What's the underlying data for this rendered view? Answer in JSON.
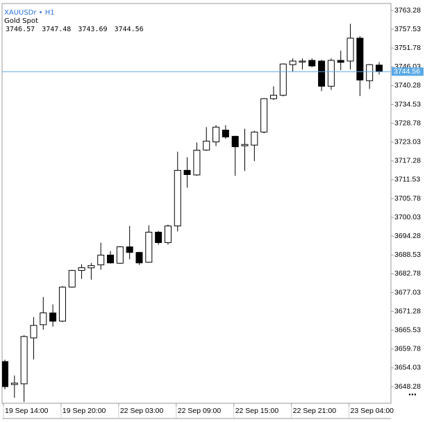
{
  "chart_data": {
    "type": "candlestick",
    "title": "XAUUSDr • H1",
    "subtitle": "Gold Spot",
    "ohlc_readout": [
      3746.57,
      3747.48,
      3743.69,
      3744.56
    ],
    "categories": [
      "19 Sep 14:00",
      null,
      null,
      null,
      null,
      null,
      "19 Sep 20:00",
      null,
      null,
      null,
      null,
      null,
      "22 Sep 03:00",
      null,
      null,
      null,
      null,
      null,
      "22 Sep 09:00",
      null,
      null,
      null,
      null,
      null,
      "22 Sep 15:00",
      null,
      null,
      null,
      null,
      null,
      "22 Sep 21:00",
      null,
      null,
      null,
      null,
      null,
      "23 Sep 04:00",
      null,
      null,
      null
    ],
    "open": [
      3655.95,
      3648.93,
      3649.15,
      3663.17,
      3667.21,
      3670.8,
      3668.3,
      3678.7,
      3683.8,
      3684.6,
      3685.5,
      3688.5,
      3686.0,
      3691.0,
      3689.3,
      3686.3,
      3695.5,
      3692.3,
      3697.4,
      3714.4,
      3713.0,
      3720.6,
      3723.1,
      3726.7,
      3724.8,
      3721.9,
      3722.1,
      3726.1,
      3736.3,
      3737.35,
      3746.7,
      3747.5,
      3748.0,
      3747.8,
      3740.1,
      3748.0,
      3747.8,
      3754.8,
      3741.8,
      3746.57
    ],
    "high": [
      3656.5,
      3651.7,
      3664.0,
      3669.55,
      3675.7,
      3673.4,
      3679.0,
      3684.0,
      3685.7,
      3686.1,
      3692.3,
      3689.7,
      3691.2,
      3697.4,
      3689.5,
      3697.6,
      3695.9,
      3697.8,
      3720.1,
      3718.4,
      3722.9,
      3727.6,
      3728.2,
      3728.2,
      3725.0,
      3727.1,
      3726.5,
      3736.5,
      3740.1,
      3747.1,
      3748.6,
      3748.6,
      3748.6,
      3748.2,
      3748.6,
      3751.0,
      3759.2,
      3755.4,
      3746.9,
      3747.48
    ],
    "low": [
      3647.5,
      3644.9,
      3643.6,
      3656.6,
      3665.7,
      3666.6,
      3668.0,
      3678.5,
      3681.2,
      3681.0,
      3684.0,
      3685.9,
      3685.8,
      3687.2,
      3685.5,
      3686.1,
      3691.7,
      3691.7,
      3695.7,
      3709.1,
      3712.7,
      3720.35,
      3721.8,
      3724.0,
      3712.7,
      3714.2,
      3717.2,
      3725.7,
      3735.9,
      3737.0,
      3744.6,
      3745.2,
      3745.9,
      3738.6,
      3739.0,
      3745.0,
      3745.2,
      3737.1,
      3739.3,
      3743.69
    ],
    "close": [
      3648.29,
      3649.36,
      3663.6,
      3667.0,
      3670.83,
      3668.28,
      3678.69,
      3683.79,
      3684.64,
      3685.28,
      3688.47,
      3686.1,
      3691.02,
      3689.3,
      3686.1,
      3695.5,
      3692.3,
      3697.4,
      3714.4,
      3713.1,
      3720.56,
      3723.33,
      3727.6,
      3724.6,
      3721.6,
      3722.3,
      3726.1,
      3736.3,
      3737.35,
      3746.9,
      3747.8,
      3747.8,
      3746.3,
      3740.1,
      3748.0,
      3747.4,
      3754.8,
      3742.0,
      3746.7,
      3744.56
    ],
    "up_color": "#ffffff",
    "down_color": "#000000",
    "current_price": 3744.56,
    "current_price_color": "#5aa9e6",
    "ylim": [
      3643.2,
      3765.4
    ],
    "yticks": [
      3763.28,
      3757.53,
      3751.78,
      3746.03,
      3740.28,
      3734.53,
      3728.78,
      3723.03,
      3717.28,
      3711.53,
      3705.78,
      3700.03,
      3694.28,
      3688.53,
      3682.78,
      3677.03,
      3671.28,
      3665.53,
      3659.78,
      3654.03,
      3648.28
    ],
    "grid": false
  }
}
